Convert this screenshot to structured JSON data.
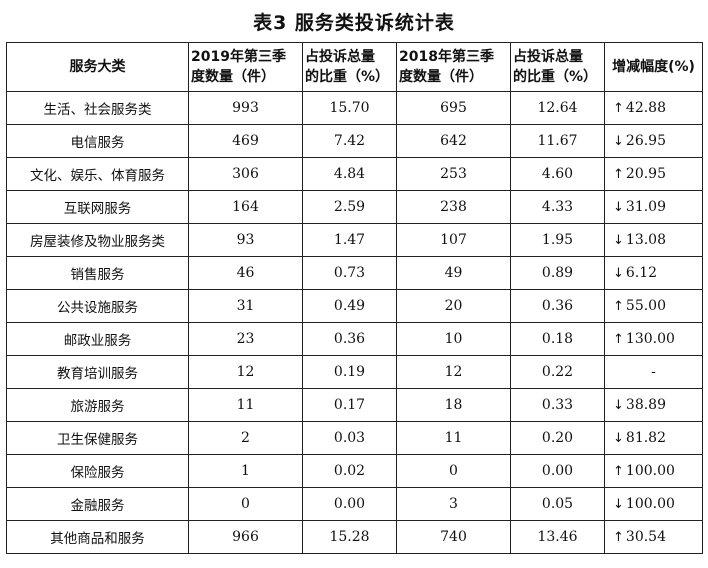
{
  "title": "表3 服务类投诉统计表",
  "headers": [
    [
      "服务大类"
    ],
    [
      "2019年第三季",
      "度数量（件）"
    ],
    [
      "占投诉总量",
      "的比重（%）"
    ],
    [
      "2018年第三季",
      "度数量（件）"
    ],
    [
      "占投诉总量",
      "的比重（%）"
    ],
    [
      "增减幅度(%)"
    ]
  ],
  "rows": [
    {
      "name": "生活、社会服务类",
      "q2019": "993",
      "p2019": "15.70",
      "q2018": "695",
      "p2018": "12.64",
      "dir": "up",
      "change": "42.88"
    },
    {
      "name": "电信服务",
      "q2019": "469",
      "p2019": "7.42",
      "q2018": "642",
      "p2018": "11.67",
      "dir": "down",
      "change": "26.95"
    },
    {
      "name": "文化、娱乐、体育服务",
      "q2019": "306",
      "p2019": "4.84",
      "q2018": "253",
      "p2018": "4.60",
      "dir": "up",
      "change": "20.95"
    },
    {
      "name": "互联网服务",
      "q2019": "164",
      "p2019": "2.59",
      "q2018": "238",
      "p2018": "4.33",
      "dir": "down",
      "change": "31.09"
    },
    {
      "name": "房屋装修及物业服务类",
      "q2019": "93",
      "p2019": "1.47",
      "q2018": "107",
      "p2018": "1.95",
      "dir": "down",
      "change": "13.08"
    },
    {
      "name": "销售服务",
      "q2019": "46",
      "p2019": "0.73",
      "q2018": "49",
      "p2018": "0.89",
      "dir": "down",
      "change": "6.12"
    },
    {
      "name": "公共设施服务",
      "q2019": "31",
      "p2019": "0.49",
      "q2018": "20",
      "p2018": "0.36",
      "dir": "up",
      "change": "55.00"
    },
    {
      "name": "邮政业服务",
      "q2019": "23",
      "p2019": "0.36",
      "q2018": "10",
      "p2018": "0.18",
      "dir": "up",
      "change": "130.00"
    },
    {
      "name": "教育培训服务",
      "q2019": "12",
      "p2019": "0.19",
      "q2018": "12",
      "p2018": "0.22",
      "dir": "",
      "change": "-"
    },
    {
      "name": "旅游服务",
      "q2019": "11",
      "p2019": "0.17",
      "q2018": "18",
      "p2018": "0.33",
      "dir": "down",
      "change": "38.89"
    },
    {
      "name": "卫生保健服务",
      "q2019": "2",
      "p2019": "0.03",
      "q2018": "11",
      "p2018": "0.20",
      "dir": "down",
      "change": "81.82"
    },
    {
      "name": "保险服务",
      "q2019": "1",
      "p2019": "0.02",
      "q2018": "0",
      "p2018": "0.00",
      "dir": "up",
      "change": "100.00"
    },
    {
      "name": "金融服务",
      "q2019": "0",
      "p2019": "0.00",
      "q2018": "3",
      "p2018": "0.05",
      "dir": "down",
      "change": "100.00"
    },
    {
      "name": "其他商品和服务",
      "q2019": "966",
      "p2019": "15.28",
      "q2018": "740",
      "p2018": "13.46",
      "dir": "up",
      "change": "30.54"
    }
  ]
}
